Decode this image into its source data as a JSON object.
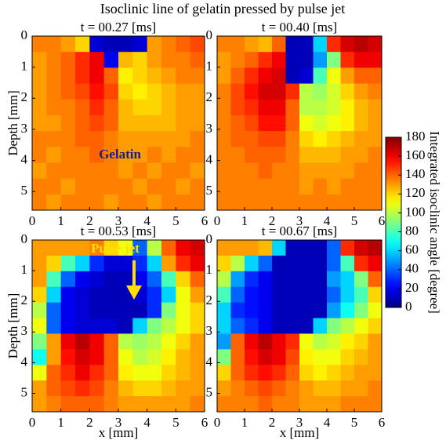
{
  "figure_title": "Isoclinic line of gelatin pressed by pulse jet",
  "colorbar": {
    "label": "Integrated isoclinic angle [degree]",
    "zlim": [
      0,
      180
    ],
    "zticks": [
      0,
      20,
      40,
      60,
      80,
      100,
      120,
      140,
      160,
      180
    ]
  },
  "chart_data": [
    {
      "type": "heatmap",
      "title": "t = 00.27 [ms]",
      "ylabel": "Depth [mm]",
      "annotation": "Gelatin",
      "xlim": [
        0,
        6
      ],
      "ylim": [
        0,
        5.6
      ],
      "xticks": [
        0,
        1,
        2,
        3,
        4,
        5,
        6
      ],
      "yticks": [
        0,
        1,
        2,
        3,
        4,
        5
      ],
      "z": [
        [
          135,
          135,
          130,
          120,
          15,
          10,
          10,
          15,
          130,
          135,
          140,
          145
        ],
        [
          130,
          135,
          140,
          150,
          160,
          20,
          125,
          120,
          130,
          135,
          135,
          140
        ],
        [
          130,
          135,
          140,
          150,
          160,
          140,
          115,
          120,
          125,
          130,
          135,
          135
        ],
        [
          130,
          135,
          140,
          145,
          155,
          145,
          120,
          115,
          120,
          125,
          130,
          130
        ],
        [
          130,
          135,
          135,
          140,
          150,
          140,
          125,
          120,
          120,
          125,
          130,
          130
        ],
        [
          130,
          130,
          135,
          140,
          145,
          140,
          125,
          125,
          125,
          125,
          130,
          130
        ],
        [
          135,
          135,
          135,
          140,
          140,
          135,
          130,
          130,
          130,
          130,
          130,
          135
        ],
        [
          135,
          130,
          135,
          135,
          140,
          135,
          130,
          130,
          135,
          130,
          135,
          135
        ],
        [
          130,
          135,
          135,
          135,
          135,
          135,
          130,
          135,
          130,
          135,
          135,
          130
        ],
        [
          135,
          135,
          130,
          135,
          135,
          135,
          135,
          130,
          135,
          135,
          130,
          135
        ],
        [
          135,
          130,
          135,
          135,
          135,
          130,
          135,
          135,
          130,
          135,
          135,
          135
        ]
      ]
    },
    {
      "type": "heatmap",
      "title": "t = 00.40 [ms]",
      "xlim": [
        0,
        6
      ],
      "ylim": [
        0,
        5.6
      ],
      "xticks": [
        0,
        1,
        2,
        3,
        4,
        5,
        6
      ],
      "yticks": [
        0,
        1,
        2,
        3,
        4,
        5
      ],
      "z": [
        [
          135,
          135,
          130,
          125,
          140,
          10,
          10,
          60,
          150,
          165,
          170,
          165
        ],
        [
          130,
          135,
          140,
          150,
          160,
          10,
          10,
          50,
          90,
          150,
          160,
          160
        ],
        [
          130,
          140,
          150,
          160,
          165,
          10,
          15,
          80,
          110,
          130,
          140,
          140
        ],
        [
          135,
          145,
          155,
          165,
          165,
          150,
          100,
          95,
          105,
          120,
          130,
          135
        ],
        [
          135,
          145,
          150,
          160,
          160,
          140,
          100,
          100,
          105,
          115,
          125,
          130
        ],
        [
          135,
          140,
          145,
          155,
          155,
          140,
          110,
          105,
          110,
          115,
          125,
          130
        ],
        [
          135,
          140,
          140,
          145,
          145,
          135,
          120,
          115,
          120,
          125,
          130,
          130
        ],
        [
          135,
          135,
          140,
          140,
          140,
          135,
          125,
          125,
          125,
          130,
          130,
          135
        ],
        [
          135,
          135,
          135,
          140,
          135,
          135,
          130,
          130,
          130,
          130,
          135,
          135
        ],
        [
          135,
          135,
          135,
          135,
          135,
          135,
          130,
          135,
          130,
          135,
          135,
          135
        ],
        [
          135,
          135,
          135,
          135,
          135,
          135,
          135,
          135,
          135,
          135,
          135,
          135
        ]
      ]
    },
    {
      "type": "heatmap",
      "title": "t = 00.53 [ms]",
      "ylabel": "Depth [mm]",
      "xlabel": "x [mm]",
      "annotation": "Pulse jet",
      "xlim": [
        0,
        6
      ],
      "ylim": [
        0,
        5.6
      ],
      "xticks": [
        0,
        1,
        2,
        3,
        4,
        5,
        6
      ],
      "yticks": [
        0,
        1,
        2,
        3,
        4,
        5
      ],
      "z": [
        [
          130,
          130,
          130,
          130,
          135,
          120,
          110,
          40,
          100,
          140,
          160,
          165
        ],
        [
          130,
          120,
          80,
          60,
          30,
          15,
          15,
          30,
          60,
          130,
          150,
          160
        ],
        [
          130,
          80,
          40,
          20,
          15,
          10,
          10,
          20,
          40,
          80,
          120,
          140
        ],
        [
          120,
          60,
          20,
          15,
          10,
          10,
          10,
          15,
          30,
          60,
          110,
          130
        ],
        [
          100,
          40,
          20,
          15,
          10,
          10,
          10,
          10,
          30,
          90,
          110,
          120
        ],
        [
          110,
          40,
          20,
          15,
          15,
          15,
          10,
          60,
          90,
          100,
          110,
          120
        ],
        [
          90,
          130,
          160,
          170,
          160,
          140,
          100,
          95,
          100,
          110,
          120,
          130
        ],
        [
          70,
          130,
          155,
          165,
          160,
          140,
          110,
          100,
          105,
          115,
          125,
          130
        ],
        [
          110,
          140,
          150,
          160,
          150,
          140,
          115,
          110,
          110,
          120,
          125,
          130
        ],
        [
          130,
          140,
          145,
          150,
          145,
          135,
          125,
          120,
          120,
          125,
          130,
          130
        ],
        [
          130,
          135,
          140,
          140,
          140,
          135,
          130,
          130,
          130,
          130,
          130,
          135
        ]
      ]
    },
    {
      "type": "heatmap",
      "title": "t = 00.67 [ms]",
      "xlabel": "x [mm]",
      "xlim": [
        0,
        6
      ],
      "ylim": [
        0,
        5.6
      ],
      "xticks": [
        0,
        1,
        2,
        3,
        4,
        5,
        6
      ],
      "yticks": [
        0,
        1,
        2,
        3,
        4,
        5
      ],
      "z": [
        [
          130,
          130,
          130,
          125,
          60,
          10,
          10,
          10,
          40,
          150,
          165,
          170
        ],
        [
          120,
          100,
          60,
          40,
          10,
          10,
          10,
          10,
          40,
          80,
          150,
          160
        ],
        [
          100,
          50,
          30,
          20,
          10,
          10,
          10,
          10,
          50,
          60,
          90,
          140
        ],
        [
          80,
          40,
          25,
          20,
          10,
          10,
          10,
          10,
          40,
          60,
          80,
          120
        ],
        [
          60,
          30,
          25,
          20,
          10,
          10,
          10,
          10,
          50,
          70,
          90,
          110
        ],
        [
          60,
          40,
          30,
          20,
          10,
          10,
          10,
          60,
          90,
          100,
          110,
          120
        ],
        [
          50,
          140,
          160,
          170,
          160,
          150,
          110,
          100,
          105,
          115,
          120,
          130
        ],
        [
          90,
          140,
          155,
          165,
          160,
          145,
          115,
          110,
          110,
          120,
          125,
          130
        ],
        [
          120,
          140,
          150,
          155,
          150,
          140,
          120,
          115,
          120,
          125,
          130,
          130
        ],
        [
          130,
          135,
          140,
          145,
          140,
          135,
          130,
          125,
          125,
          130,
          130,
          135
        ],
        [
          135,
          135,
          135,
          140,
          135,
          135,
          130,
          130,
          130,
          135,
          135,
          135
        ]
      ]
    }
  ]
}
